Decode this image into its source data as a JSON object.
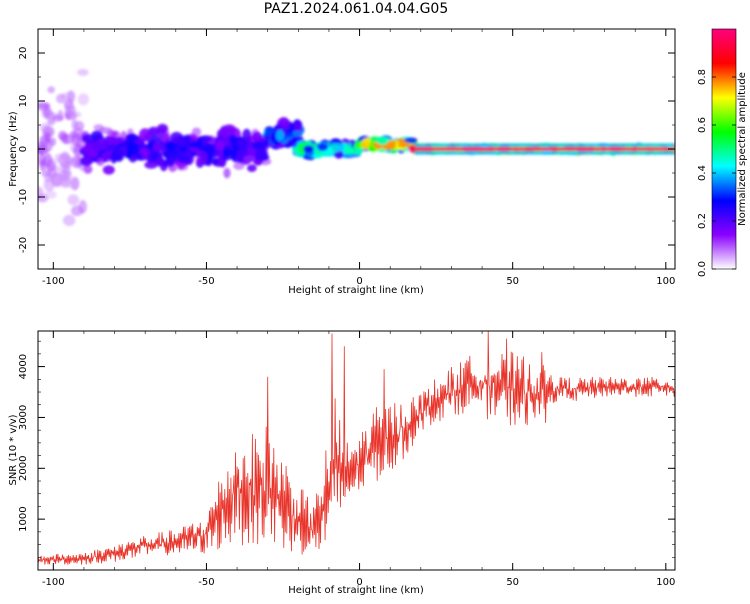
{
  "title": "PAZ1.2024.061.04.04.G05",
  "chart_data": [
    {
      "type": "heatmap",
      "xlabel": "Height of straight line (km)",
      "ylabel": "Frequency (Hz)",
      "xlim": [
        -105,
        103
      ],
      "ylim": [
        -25,
        25
      ],
      "xticks": [
        -100,
        -50,
        0,
        50,
        100
      ],
      "yticks": [
        -20,
        -10,
        0,
        10,
        20
      ],
      "colorbar": {
        "label": "Normalized spectral amplitude",
        "range": [
          0,
          1
        ],
        "ticks": [
          "0.0",
          "0.2",
          "0.4",
          "0.6",
          "0.8"
        ],
        "tick_values": [
          0.0,
          0.2,
          0.4,
          0.6,
          0.8
        ],
        "colormap": [
          "#ffffff",
          "#8a00ff",
          "#0000ff",
          "#00ffff",
          "#00ff00",
          "#ffff00",
          "#ff0000",
          "#ff0080"
        ]
      },
      "bands": [
        {
          "x_from": -105,
          "x_to": -90,
          "freq_center": 0,
          "freq_spread": 24,
          "amplitude": 0.1
        },
        {
          "x_from": -90,
          "x_to": -30,
          "freq_center": 0,
          "freq_spread": 6,
          "amplitude": 0.25
        },
        {
          "x_from": -30,
          "x_to": -20,
          "freq_center": 3,
          "freq_spread": 4,
          "amplitude": 0.35
        },
        {
          "x_from": -20,
          "x_to": 0,
          "freq_center": 0,
          "freq_spread": 2,
          "amplitude": 0.5
        },
        {
          "x_from": 0,
          "x_to": 18,
          "freq_center": 1,
          "freq_spread": 1.5,
          "amplitude": 0.7
        },
        {
          "x_from": 18,
          "x_to": 103,
          "freq_center": 0,
          "freq_spread": 0.6,
          "amplitude": 0.95
        }
      ]
    },
    {
      "type": "line",
      "xlabel": "Height of straight line (km)",
      "ylabel": "SNR (10 * v/v)",
      "xlim": [
        -105,
        103
      ],
      "ylim": [
        0,
        4700
      ],
      "xticks": [
        -100,
        -50,
        0,
        50,
        100
      ],
      "yticks": [
        1000,
        2000,
        3000,
        4000
      ],
      "color": "#e8342a",
      "envelope": {
        "x": [
          -105,
          -90,
          -80,
          -70,
          -60,
          -50,
          -45,
          -40,
          -35,
          -30,
          -25,
          -20,
          -15,
          -10,
          -8,
          -5,
          0,
          5,
          10,
          15,
          20,
          25,
          30,
          35,
          40,
          45,
          50,
          55,
          60,
          62,
          65,
          70,
          80,
          90,
          100,
          103
        ],
        "low": [
          100,
          100,
          150,
          250,
          300,
          300,
          400,
          500,
          450,
          400,
          350,
          300,
          250,
          300,
          400,
          1200,
          1500,
          1700,
          1900,
          2200,
          2700,
          2900,
          3000,
          3100,
          3000,
          2900,
          2800,
          2800,
          2700,
          3200,
          3300,
          3300,
          3400,
          3400,
          3400,
          3400
        ],
        "high": [
          300,
          350,
          500,
          700,
          800,
          1100,
          2000,
          2600,
          2700,
          2900,
          2300,
          1700,
          1300,
          2700,
          3600,
          2500,
          2700,
          3200,
          3300,
          3400,
          3500,
          3800,
          4000,
          4200,
          4300,
          4300,
          4300,
          4200,
          4300,
          3900,
          3800,
          3800,
          3800,
          3800,
          3800,
          3700
        ]
      },
      "spikes": [
        {
          "x": -30,
          "y": 3800
        },
        {
          "x": -9,
          "y": 4650
        },
        {
          "x": -5,
          "y": 4400
        },
        {
          "x": 8,
          "y": 3950
        },
        {
          "x": 42,
          "y": 4700
        },
        {
          "x": 48,
          "y": 4550
        }
      ]
    }
  ]
}
